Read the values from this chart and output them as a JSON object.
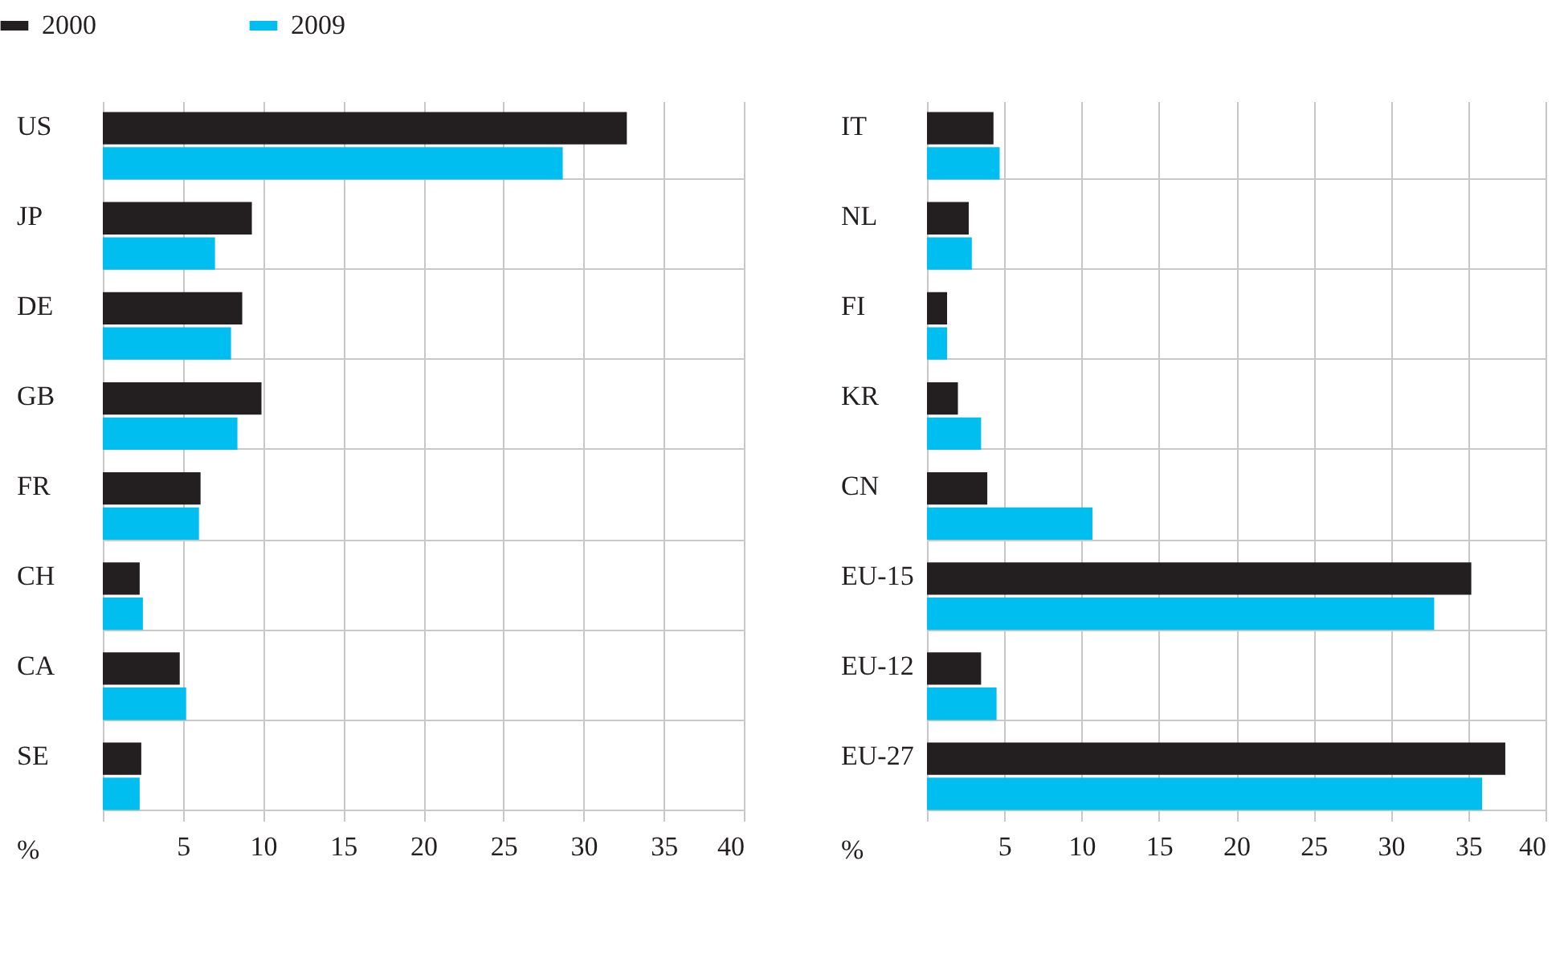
{
  "chart_data": [
    {
      "type": "bar",
      "orientation": "horizontal",
      "categories": [
        "US",
        "JP",
        "DE",
        "GB",
        "FR",
        "CH",
        "CA",
        "SE"
      ],
      "series": [
        {
          "name": "2000",
          "color": "#231f20",
          "values": [
            32.7,
            9.3,
            8.7,
            9.9,
            6.1,
            2.3,
            4.8,
            2.4
          ]
        },
        {
          "name": "2009",
          "color": "#00bff0",
          "values": [
            28.7,
            7.0,
            8.0,
            8.4,
            6.0,
            2.5,
            5.2,
            2.3
          ]
        }
      ],
      "xlabel": "%",
      "xlim": [
        0,
        40
      ],
      "xticks": [
        5,
        10,
        15,
        20,
        25,
        30,
        35,
        40
      ],
      "grid": true,
      "legend": "top left"
    },
    {
      "type": "bar",
      "orientation": "horizontal",
      "categories": [
        "IT",
        "NL",
        "FI",
        "KR",
        "CN",
        "EU-15",
        "EU-12",
        "EU-27"
      ],
      "series": [
        {
          "name": "2000",
          "color": "#231f20",
          "values": [
            4.3,
            2.7,
            1.3,
            2.0,
            3.9,
            35.2,
            3.5,
            37.4
          ]
        },
        {
          "name": "2009",
          "color": "#00bff0",
          "values": [
            4.7,
            2.9,
            1.3,
            3.5,
            10.7,
            32.8,
            4.5,
            35.9
          ]
        }
      ],
      "xlabel": "%",
      "xlim": [
        0,
        40
      ],
      "xticks": [
        5,
        10,
        15,
        20,
        25,
        30,
        35,
        40
      ],
      "grid": true
    }
  ]
}
